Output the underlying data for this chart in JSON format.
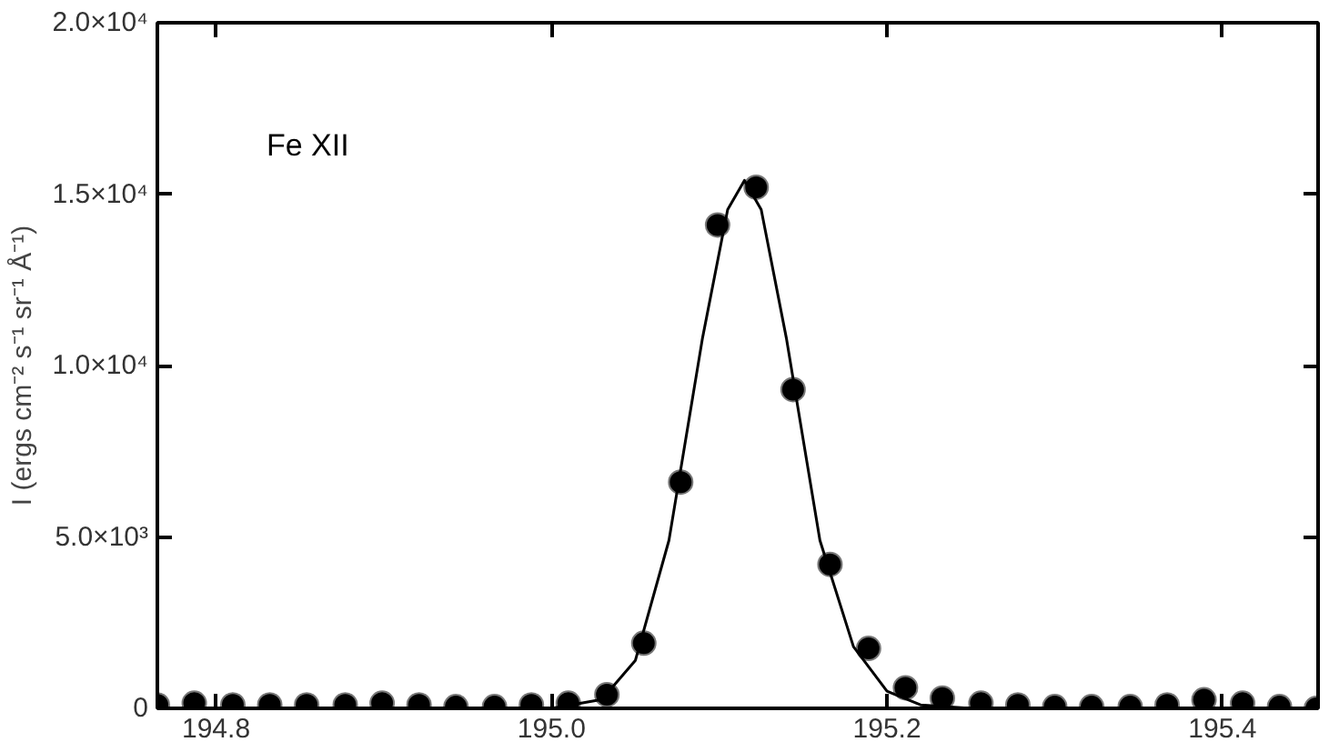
{
  "chart_data": {
    "type": "scatter",
    "ylabel": "I (ergs cm⁻² s⁻¹ sr⁻¹ Å⁻¹)",
    "annotations": [
      "Fe XII"
    ],
    "xlim": [
      194.765,
      195.457
    ],
    "xticks": [
      {
        "value": 194.8,
        "label": "194.8"
      },
      {
        "value": 195.0,
        "label": "195.0"
      },
      {
        "value": 195.2,
        "label": "195.2"
      },
      {
        "value": 195.4,
        "label": "195.4"
      }
    ],
    "ylim": [
      0,
      20000
    ],
    "yticks": [
      0,
      {
        "value": 5000,
        "label": "5.0×10³"
      },
      {
        "value": 10000,
        "label": "1.0×10⁴"
      },
      {
        "value": 15000,
        "label": "1.5×10⁴"
      },
      {
        "value": 20000,
        "label": "2.0×10⁴"
      }
    ],
    "grid": false,
    "marker": "circle",
    "series": [
      {
        "color": "#000000",
        "x": [
          194.765,
          194.787,
          194.81,
          194.832,
          194.854,
          194.877,
          194.899,
          194.921,
          194.943,
          194.966,
          194.988,
          195.01,
          195.033,
          195.055,
          195.077,
          195.099,
          195.122,
          195.144,
          195.166,
          195.189,
          195.211,
          195.233,
          195.256,
          195.278,
          195.3,
          195.322,
          195.345,
          195.367,
          195.389,
          195.412,
          195.434,
          195.456
        ],
        "values": [
          100,
          150,
          100,
          100,
          100,
          100,
          150,
          100,
          50,
          50,
          100,
          150,
          400,
          1900,
          6600,
          14100,
          15200,
          9300,
          4200,
          1750,
          600,
          300,
          150,
          100,
          50,
          50,
          50,
          100,
          250,
          150,
          50,
          0
        ]
      },
      {
        "type": "line",
        "color": "#000000",
        "line_style": "solid",
        "marker": "none",
        "x": [
          194.765,
          195.0,
          195.03,
          195.05,
          195.07,
          195.09,
          195.105,
          195.115,
          195.125,
          195.14,
          195.16,
          195.18,
          195.2,
          195.22,
          195.25,
          195.455
        ],
        "values": [
          0,
          0,
          260,
          1400,
          4900,
          10800,
          14550,
          15400,
          14550,
          10800,
          4900,
          1800,
          500,
          100,
          0,
          0
        ]
      }
    ]
  }
}
